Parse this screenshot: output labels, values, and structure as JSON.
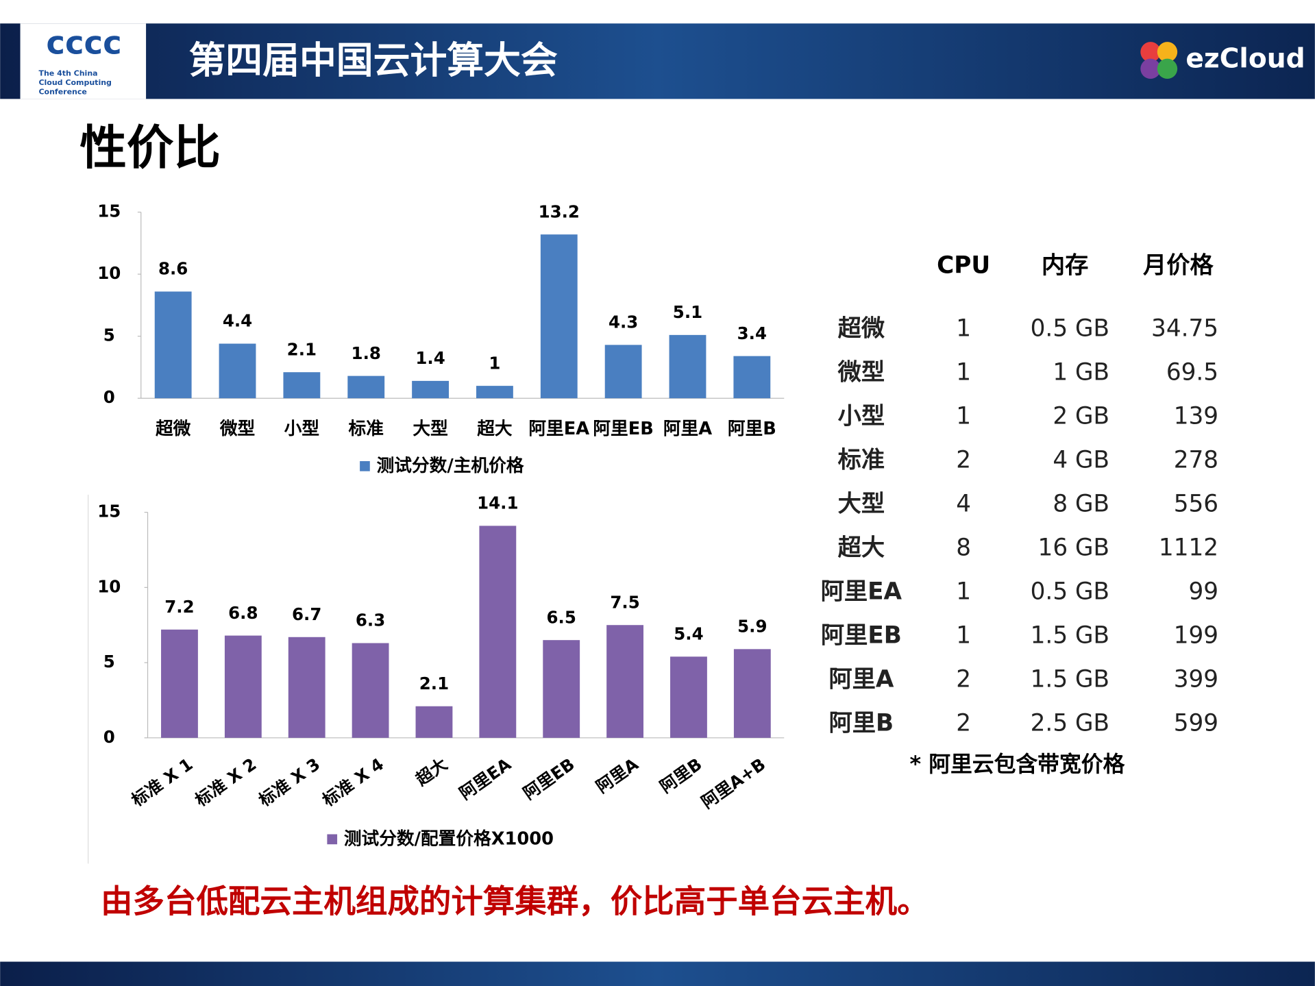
{
  "header": {
    "logo_mark": "cccc",
    "logo_caption": [
      "The 4th China",
      "Cloud Computing",
      "Conference"
    ],
    "title": "第四届中国云计算大会",
    "brand": "ezCloud"
  },
  "title": "性价比",
  "chart_data": [
    {
      "type": "bar",
      "categories": [
        "超微",
        "微型",
        "小型",
        "标准",
        "大型",
        "超大",
        "阿里EA",
        "阿里EB",
        "阿里A",
        "阿里B"
      ],
      "series": [
        {
          "name": "测试分数/主机价格",
          "color": "#4a7fc1",
          "values": [
            8.6,
            4.4,
            2.1,
            1.8,
            1.4,
            1,
            13.2,
            4.3,
            5.1,
            3.4
          ]
        }
      ],
      "ylim": [
        0,
        15
      ],
      "yticks": [
        0,
        5,
        10,
        15
      ],
      "rotate_labels": false
    },
    {
      "type": "bar",
      "categories": [
        "标准 X 1",
        "标准 X 2",
        "标准 X 3",
        "标准 X 4",
        "超大",
        "阿里EA",
        "阿里EB",
        "阿里A",
        "阿里B",
        "阿里A+B"
      ],
      "series": [
        {
          "name": "测试分数/配置价格X1000",
          "color": "#7f62a9",
          "values": [
            7.2,
            6.8,
            6.7,
            6.3,
            2.1,
            14.1,
            6.5,
            7.5,
            5.4,
            5.9
          ]
        }
      ],
      "ylim": [
        0,
        15
      ],
      "yticks": [
        0,
        5,
        10,
        15
      ],
      "rotate_labels": true
    }
  ],
  "table": {
    "header": [
      "CPU",
      "内存",
      "月价格"
    ],
    "rows": [
      [
        "超微",
        "1",
        "0.5 GB",
        "34.75"
      ],
      [
        "微型",
        "1",
        "1 GB",
        "69.5"
      ],
      [
        "小型",
        "1",
        "2 GB",
        "139"
      ],
      [
        "标准",
        "2",
        "4 GB",
        "278"
      ],
      [
        "大型",
        "4",
        "8 GB",
        "556"
      ],
      [
        "超大",
        "8",
        "16 GB",
        "1112"
      ],
      [
        "阿里EA",
        "1",
        "0.5 GB",
        "99"
      ],
      [
        "阿里EB",
        "1",
        "1.5 GB",
        "199"
      ],
      [
        "阿里A",
        "2",
        "1.5 GB",
        "399"
      ],
      [
        "阿里B",
        "2",
        "2.5 GB",
        "599"
      ]
    ],
    "note": "* 阿里云包含带宽价格"
  },
  "conclusion": "由多台低配云主机组成的计算集群，价比高于单台云主机。"
}
